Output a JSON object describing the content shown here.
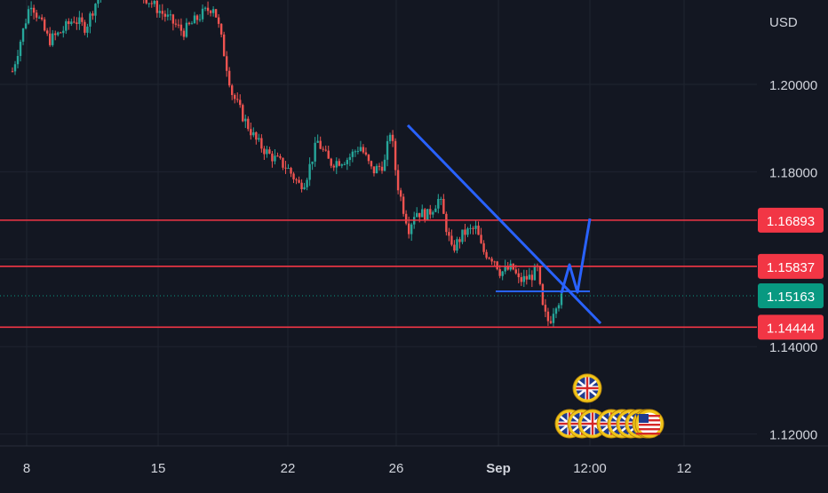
{
  "colors": {
    "background": "#131722",
    "grid": "#1f2430",
    "axis_text": "#d1d4dc",
    "candle_up": "#26a69a",
    "candle_down": "#ef5350",
    "hline": "#f23645",
    "trendline": "#2962ff",
    "current_price": "#089981",
    "badge_red": "#f23645"
  },
  "chart_data": {
    "type": "candlestick",
    "currency_label": "USD",
    "y_ticks": [
      "1.20000",
      "1.18000",
      "1.14000",
      "1.12000"
    ],
    "x_ticks": [
      "8",
      "15",
      "22",
      "26",
      "Sep",
      "12:00",
      "12"
    ],
    "ylim": [
      1.114,
      1.2264
    ],
    "grid": true,
    "price_levels": [
      {
        "name": "resistance-1",
        "value": "1.16893"
      },
      {
        "name": "resistance-2",
        "value": "1.15837"
      },
      {
        "name": "current",
        "value": "1.15163"
      },
      {
        "name": "support",
        "value": "1.14444"
      }
    ],
    "price_path": [
      [
        0,
        1.203
      ],
      [
        3,
        1.219
      ],
      [
        6,
        1.21
      ],
      [
        8,
        1.212
      ],
      [
        10,
        1.215
      ],
      [
        12,
        1.213
      ],
      [
        14,
        1.22
      ],
      [
        17,
        1.225
      ],
      [
        18,
        1.227
      ],
      [
        21,
        1.221
      ],
      [
        24,
        1.217
      ],
      [
        28,
        1.212
      ],
      [
        31,
        1.216
      ],
      [
        33,
        1.218
      ],
      [
        34,
        1.212
      ],
      [
        36,
        1.198
      ],
      [
        38,
        1.192
      ],
      [
        40,
        1.187
      ],
      [
        42,
        1.184
      ],
      [
        45,
        1.181
      ],
      [
        47,
        1.177
      ],
      [
        48,
        1.178
      ],
      [
        50,
        1.187
      ],
      [
        52,
        1.182
      ],
      [
        55,
        1.183
      ],
      [
        57,
        1.186
      ],
      [
        59,
        1.18
      ],
      [
        61,
        1.182
      ],
      [
        62,
        1.19
      ],
      [
        63,
        1.178
      ],
      [
        64,
        1.172
      ],
      [
        65,
        1.167
      ],
      [
        66,
        1.171
      ],
      [
        68,
        1.17
      ],
      [
        70,
        1.174
      ],
      [
        71,
        1.168
      ],
      [
        72,
        1.162
      ],
      [
        74,
        1.166
      ],
      [
        76,
        1.167
      ],
      [
        77,
        1.162
      ],
      [
        79,
        1.16
      ],
      [
        80,
        1.157
      ],
      [
        82,
        1.158
      ],
      [
        83,
        1.155
      ],
      [
        85,
        1.156
      ],
      [
        86,
        1.158
      ],
      [
        87,
        1.148
      ],
      [
        88,
        1.1454
      ],
      [
        89,
        1.15
      ],
      [
        90,
        1.151
      ]
    ],
    "events": [
      {
        "flag": "GB",
        "row": 2
      },
      {
        "flag": "GB",
        "row": 1
      },
      {
        "flag": "GB",
        "row": 1
      },
      {
        "flag": "GB",
        "row": 1
      },
      {
        "flag": "GB",
        "row": 1
      },
      {
        "flag": "GB",
        "row": 1
      },
      {
        "flag": "GB",
        "row": 1
      },
      {
        "flag": "GB",
        "row": 1
      },
      {
        "flag": "US",
        "row": 1
      },
      {
        "flag": "US",
        "row": 1
      }
    ]
  }
}
